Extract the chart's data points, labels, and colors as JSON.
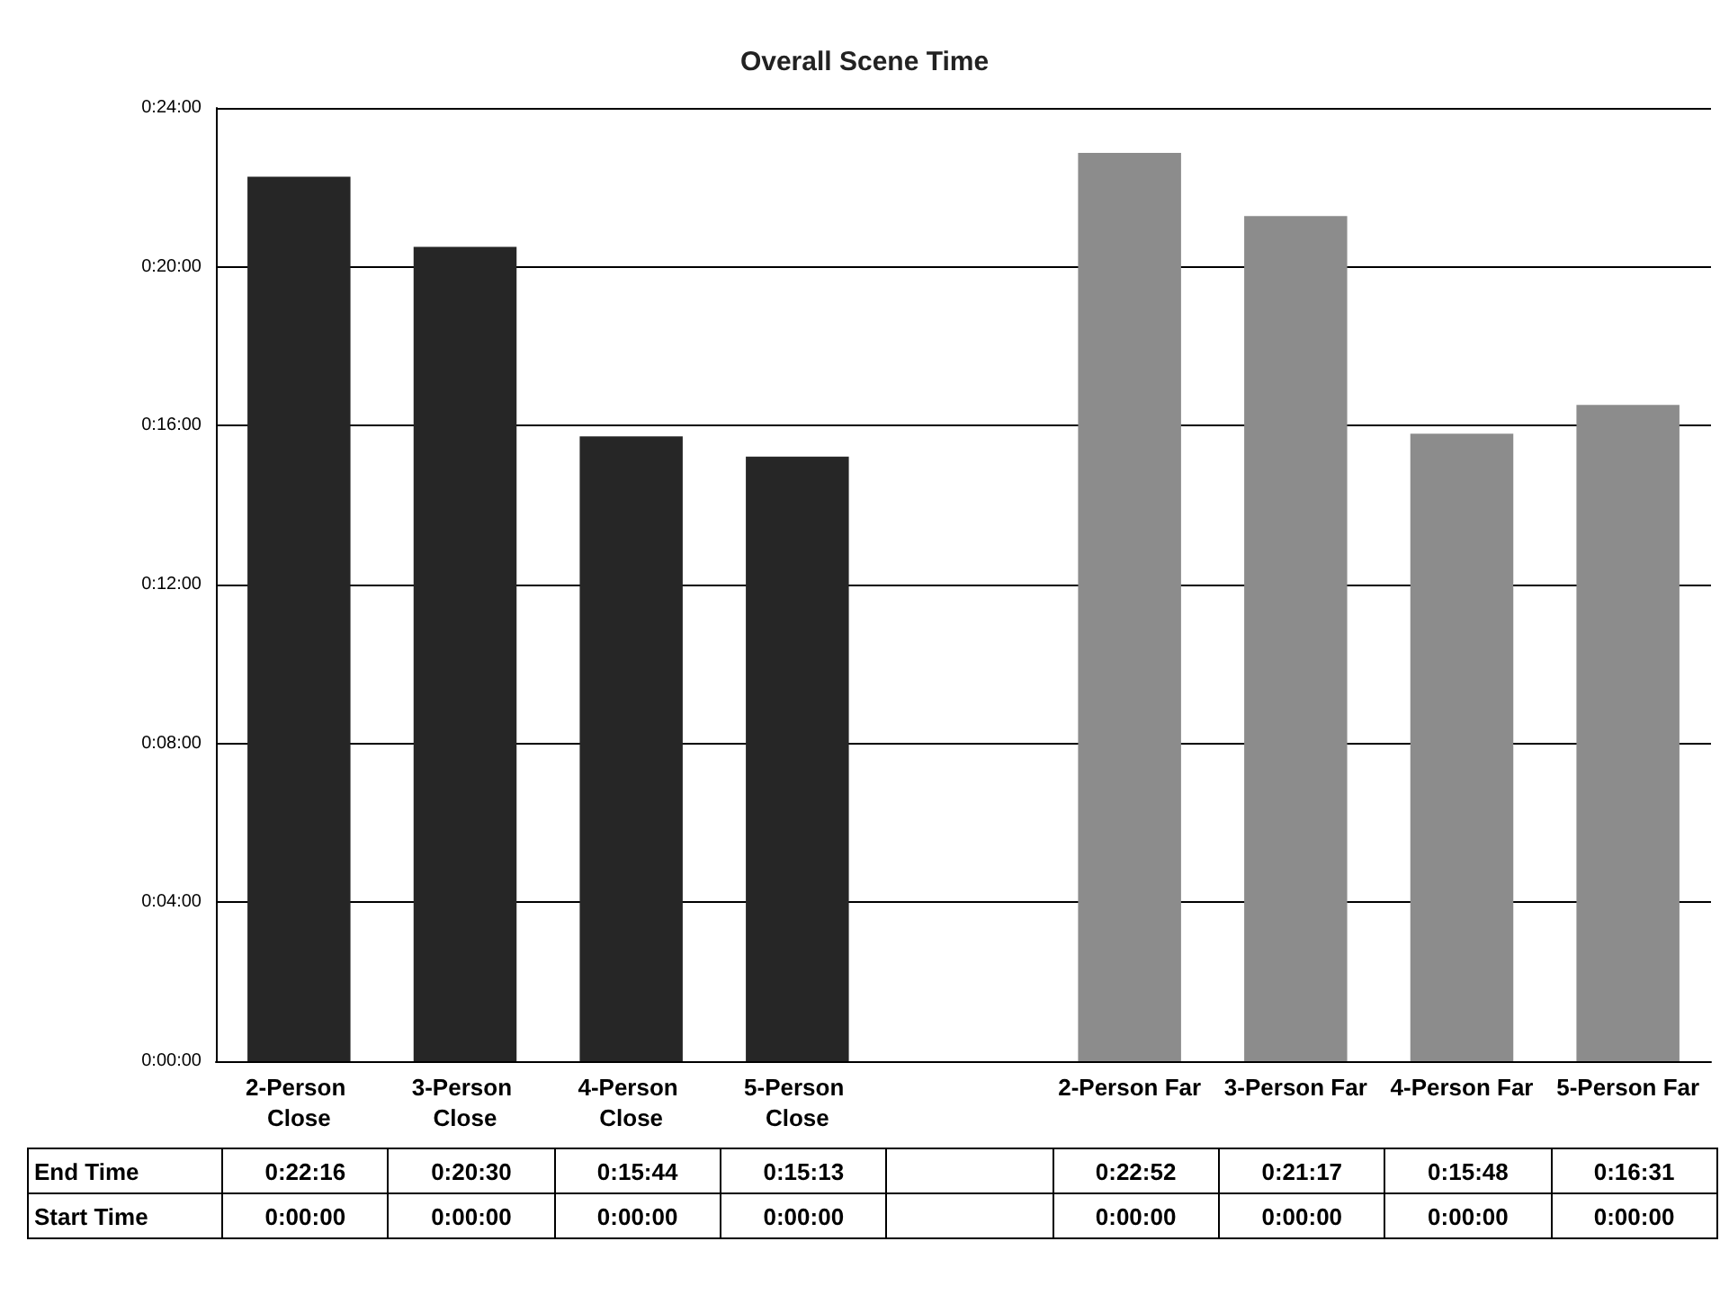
{
  "chart_data": {
    "type": "bar",
    "title": "Overall Scene Time",
    "categories": [
      "2-Person Close",
      "3-Person Close",
      "4-Person Close",
      "5-Person Close",
      null,
      "2-Person Far",
      "3-Person Far",
      "4-Person Far",
      "5-Person Far"
    ],
    "series": [
      {
        "name": "Start Time",
        "values": [
          0,
          0,
          0,
          0,
          null,
          0,
          0,
          0,
          0
        ],
        "value_labels": [
          "0:00:00",
          "0:00:00",
          "0:00:00",
          "0:00:00",
          null,
          "0:00:00",
          "0:00:00",
          "0:00:00",
          "0:00:00"
        ]
      },
      {
        "name": "End Time",
        "colors": [
          "#262626",
          "#262626",
          "#262626",
          "#262626",
          null,
          "#8c8c8c",
          "#8c8c8c",
          "#8c8c8c",
          "#8c8c8c"
        ],
        "values": [
          22.27,
          20.5,
          15.73,
          15.22,
          null,
          22.87,
          21.28,
          15.8,
          16.52
        ],
        "value_labels": [
          "0:22:16",
          "0:20:30",
          "0:15:44",
          "0:15:13",
          null,
          "0:22:52",
          "0:21:17",
          "0:15:48",
          "0:16:31"
        ]
      }
    ],
    "stacked": true,
    "ylim": [
      0,
      24
    ],
    "yticks": [
      {
        "value": 0,
        "label": "0:00:00"
      },
      {
        "value": 4,
        "label": "0:04:00"
      },
      {
        "value": 8,
        "label": "0:08:00"
      },
      {
        "value": 12,
        "label": "0:12:00"
      },
      {
        "value": 16,
        "label": "0:16:00"
      },
      {
        "value": 20,
        "label": "0:20:00"
      },
      {
        "value": 24,
        "label": "0:24:00"
      }
    ],
    "grid": "y",
    "legend": false
  }
}
